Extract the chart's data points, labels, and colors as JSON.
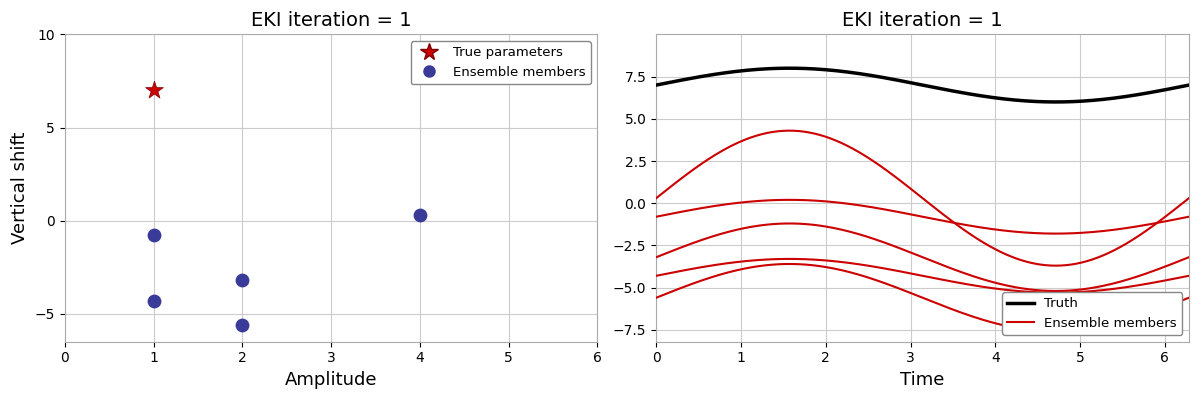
{
  "title": "EKI iteration = 1",
  "left": {
    "xlabel": "Amplitude",
    "ylabel": "Vertical shift",
    "xlim": [
      0,
      6
    ],
    "ylim": [
      -6.5,
      10
    ],
    "yticks": [
      -5,
      0,
      5,
      10
    ],
    "true_params": [
      1.0,
      7.0
    ],
    "ensemble_members": [
      [
        1.0,
        -0.8
      ],
      [
        1.0,
        -4.3
      ],
      [
        2.0,
        -3.2
      ],
      [
        2.0,
        -5.6
      ],
      [
        4.0,
        0.3
      ]
    ],
    "star_color": "#cc0000",
    "circle_color": "#3a3a99"
  },
  "right": {
    "xlabel": "Time",
    "xlim": [
      0,
      6.283
    ],
    "ylim": [
      -8.2,
      10
    ],
    "yticks": [
      -7.5,
      -5.0,
      -2.5,
      0.0,
      2.5,
      5.0,
      7.5
    ],
    "truth_color": "#000000",
    "ensemble_color": "#cc0000",
    "ensemble_members": [
      [
        4.0,
        0.3
      ],
      [
        1.0,
        -0.8
      ],
      [
        2.0,
        -3.2
      ],
      [
        1.0,
        -4.3
      ],
      [
        2.0,
        -5.6
      ]
    ]
  },
  "bg_color": "#ffffff",
  "grid_color": "#cccccc"
}
